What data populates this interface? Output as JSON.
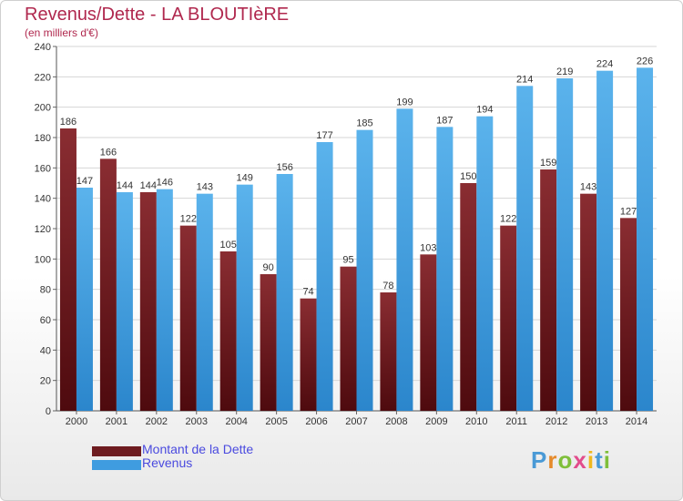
{
  "header": {
    "title": "Revenus/Dette - LA BLOUTIèRE",
    "subtitle": "(en milliers d'€)"
  },
  "legend": {
    "items": [
      {
        "label": "Montant de la Dette",
        "color": "#6e1c20"
      },
      {
        "label": "Revenus",
        "color": "#3f9ce0"
      }
    ]
  },
  "logo": {
    "letters": [
      {
        "ch": "P",
        "color": "#4a9ad6"
      },
      {
        "ch": "r",
        "color": "#e58a2a"
      },
      {
        "ch": "o",
        "color": "#7fbf3a"
      },
      {
        "ch": "x",
        "color": "#e24c8c"
      },
      {
        "ch": "i",
        "color": "#f0b81e"
      },
      {
        "ch": "t",
        "color": "#4a9ad6"
      },
      {
        "ch": "i",
        "color": "#7fbf3a"
      }
    ]
  },
  "chart_data": {
    "type": "bar",
    "title": "Revenus/Dette - LA BLOUTIèRE",
    "subtitle": "(en milliers d'€)",
    "categories": [
      "2000",
      "2001",
      "2002",
      "2003",
      "2004",
      "2005",
      "2006",
      "2007",
      "2008",
      "2009",
      "2010",
      "2011",
      "2012",
      "2013",
      "2014"
    ],
    "series": [
      {
        "name": "Montant de la Dette",
        "color": "#6e1c20",
        "values": [
          186,
          166,
          144,
          122,
          105,
          90,
          74,
          95,
          78,
          103,
          150,
          122,
          159,
          143,
          127
        ]
      },
      {
        "name": "Revenus",
        "color": "#3f9ce0",
        "values": [
          147,
          144,
          146,
          143,
          149,
          156,
          177,
          185,
          199,
          187,
          194,
          214,
          219,
          224,
          226
        ]
      }
    ],
    "ylim": [
      0,
      240
    ],
    "yticks": [
      0,
      20,
      40,
      60,
      80,
      100,
      120,
      140,
      160,
      180,
      200,
      220,
      240
    ],
    "grid": true,
    "legend_position": "bottom-left"
  }
}
